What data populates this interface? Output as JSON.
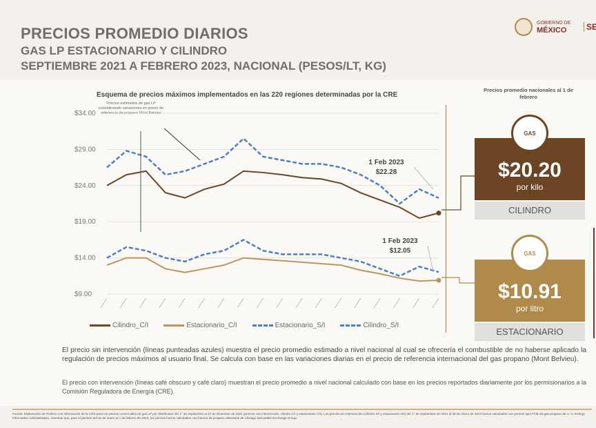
{
  "header": {
    "title": "PRECIOS PROMEDIO DIARIOS",
    "subtitle": "GAS LP ESTACIONARIO Y CILINDRO",
    "period": "SEPTIEMBRE 2021 A FEBRERO 2023, NACIONAL (PESOS/LT, KG)"
  },
  "logo": {
    "line1": "GOBIERNO DE",
    "line2": "MÉXICO",
    "secretaria": "SE"
  },
  "chart_data": {
    "type": "line",
    "title": "Esquema de precios máximos implementados en las 220 regiones determinadas por la CRE",
    "annotation": "Precios estimados de gas LP considerando variaciones en precio de referencia de propano Mont Belvieu",
    "y_ticks": [
      "$34.00",
      "$29.00",
      "$24.00",
      "$19.00",
      "$14.00",
      "$9.00"
    ],
    "ylim": [
      9,
      34
    ],
    "x_range": [
      "Sep 2021",
      "Feb 2023"
    ],
    "series": [
      {
        "name": "Cilindro_C/I",
        "color": "#6b4423",
        "style": "solid",
        "values": [
          24,
          25.5,
          26,
          23,
          22.3,
          23.5,
          24.2,
          26,
          25.8,
          25.5,
          25.1,
          24.9,
          24.3,
          23,
          22,
          21,
          19.5,
          20.2
        ]
      },
      {
        "name": "Estacionario_C/I",
        "color": "#b8955e",
        "style": "solid",
        "values": [
          13,
          14,
          14,
          12.5,
          12,
          12.5,
          13,
          14,
          13.8,
          13.6,
          13.4,
          13.2,
          13,
          12.3,
          11.8,
          11.2,
          10.8,
          10.91
        ]
      },
      {
        "name": "Estacionario_S/I",
        "color": "#4a7fc1",
        "style": "dashed",
        "values": [
          14,
          15.5,
          15,
          14,
          13.5,
          14.5,
          15,
          16.5,
          15,
          14.5,
          14.5,
          14.5,
          14,
          13.5,
          12.5,
          11.5,
          12.8,
          12.05
        ]
      },
      {
        "name": "Cilindro_S/I",
        "color": "#4a7fc1",
        "style": "dashed",
        "values": [
          26.5,
          28.8,
          28,
          25.5,
          26,
          27,
          28,
          30.5,
          28,
          27.5,
          27,
          27,
          26.5,
          25.5,
          24,
          21.5,
          23.5,
          22.28
        ]
      }
    ],
    "callouts": [
      {
        "date": "1 Feb 2023",
        "value": "$22.28"
      },
      {
        "date": "1 Feb 2023",
        "value": "$12.05"
      }
    ],
    "legend_position": "bottom"
  },
  "right": {
    "title": "Precios promedio nacionales al 1 de febrero",
    "cilindro": {
      "price": "$20.20",
      "unit": "por kilo",
      "label": "CILINDRO",
      "icon_text": "GAS"
    },
    "estacionario": {
      "price": "$10.91",
      "unit": "por litro",
      "label": "ESTACIONARIO",
      "icon_text": "GAS"
    }
  },
  "notes": [
    "El precio sin intervención (líneas punteadas azules) muestra el precio promedio estimado a nivel nacional al cual se ofrecería el combustible de no haberse aplicado la regulación de precios máximos al usuario final. Se calcula con base en las variaciones diarias en el precio de referencia internacional del gas propano (Mont Belvieu).",
    "El precio con intervención (líneas café obscuro y café claro) muestran el precio promedio a nivel nacional calculado con base en los precios reportados diariamente por los permisionarios a la Comisión Reguladora de Energía (CRE)."
  ],
  "footnote": "Fuente: Elaboración de Profeco con información de la CRE para los precios comerciales de gas LP por distribuidor del 1° de septiembre al 22 de diciembre de 2021 (precios con intervención, cilindro C/I y estacionario C/I). Los precios sin intervención (cilindro S/I y estacionario S/I) del 1° de septiembre de 2021 al 30 de enero de 2023 fueron calculados con precios spot FOB de gas propano de U. S. Energy Information Administration, mientras que, para el periodo del 31 de enero al 1 de febrero de 2023, los precios fueron calculados con futuros de propano obtenidos de Chicago Mercantile Exchange Group."
}
